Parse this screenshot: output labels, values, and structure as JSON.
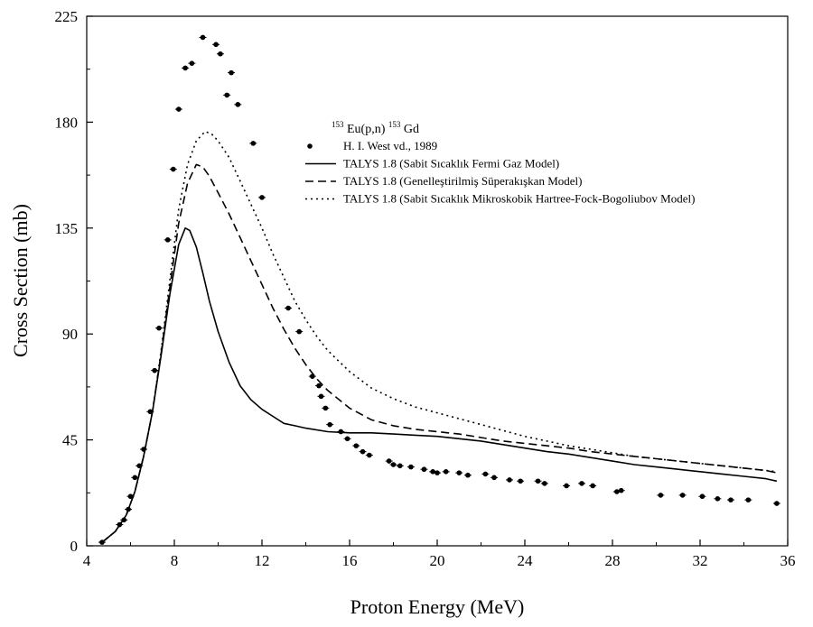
{
  "chart_data": {
    "type": "scatter",
    "xlabel": "Proton Energy (MeV)",
    "ylabel": "Cross Section (mb)",
    "xlim": [
      4,
      36
    ],
    "ylim": [
      0,
      225
    ],
    "xticks": [
      4,
      8,
      12,
      16,
      20,
      24,
      28,
      32,
      36
    ],
    "yticks": [
      0,
      45,
      90,
      135,
      180,
      225
    ],
    "grid": false,
    "legend_position": "top-right",
    "legend_title": {
      "sup_a": "153",
      "main_a": "Eu(p,n)",
      "sup_b": "153",
      "main_b": "Gd"
    },
    "series": [
      {
        "name": "H. I. West vd., 1989",
        "style": "points",
        "x": [
          4.7,
          5.5,
          5.7,
          5.9,
          6.0,
          6.2,
          6.4,
          6.6,
          6.9,
          7.1,
          7.3,
          7.7,
          7.95,
          8.2,
          8.5,
          8.8,
          9.3,
          9.9,
          10.1,
          10.4,
          10.6,
          10.9,
          11.6,
          12.0,
          13.2,
          13.7,
          14.3,
          14.6,
          14.7,
          14.9,
          15.1,
          15.6,
          15.9,
          16.3,
          16.6,
          16.9,
          17.8,
          18.0,
          18.3,
          18.8,
          19.4,
          19.8,
          20.0,
          20.4,
          21.0,
          21.4,
          22.2,
          22.6,
          23.3,
          23.8,
          24.6,
          24.9,
          25.9,
          26.6,
          27.1,
          28.2,
          28.4,
          30.2,
          31.2,
          32.1,
          32.8,
          33.4,
          34.2,
          35.5
        ],
        "y": [
          1.5,
          9,
          11,
          15.5,
          21,
          29,
          34,
          41,
          57,
          74.5,
          92.5,
          130,
          160,
          185.5,
          203,
          205,
          216,
          213,
          209,
          191.5,
          201,
          187.5,
          171,
          148,
          101,
          91,
          72,
          68,
          63.5,
          58.5,
          51.5,
          48.5,
          45.5,
          42.5,
          40,
          38.5,
          36,
          34.5,
          34,
          33.5,
          32.5,
          31.5,
          31,
          31.5,
          31,
          30,
          30.5,
          29,
          28,
          27.5,
          27.5,
          26.5,
          25.5,
          26.5,
          25.5,
          23,
          23.5,
          21.5,
          21.5,
          21,
          20,
          19.5,
          19.5,
          18
        ],
        "color": "#000000"
      },
      {
        "name": "TALYS 1.8 (Sabit Sıcaklık Fermi Gaz Model)",
        "style": "solid",
        "x": [
          4.7,
          5.3,
          5.8,
          6.2,
          6.6,
          7.0,
          7.4,
          7.8,
          8.2,
          8.5,
          8.7,
          9.0,
          9.3,
          9.6,
          10.0,
          10.5,
          11.0,
          11.5,
          12.0,
          12.5,
          13.0,
          13.5,
          14.0,
          15.0,
          16.0,
          17.0,
          18.0,
          19.0,
          20.0,
          21.0,
          22.0,
          23.0,
          24.0,
          25.0,
          26.0,
          27.0,
          28.0,
          29.0,
          30.0,
          31.0,
          32.0,
          33.0,
          34.0,
          35.0,
          35.5
        ],
        "y": [
          1.5,
          6,
          13,
          23,
          38,
          57,
          81,
          107,
          128,
          135,
          134,
          127,
          116,
          104,
          91,
          78,
          68,
          62,
          58,
          55,
          52,
          51,
          50,
          48.5,
          48,
          48,
          47.5,
          47,
          46.5,
          45.5,
          44.5,
          43,
          41.5,
          40,
          39,
          37.5,
          36,
          34.5,
          33.5,
          32.5,
          31.5,
          30.5,
          29.5,
          28.5,
          27.5
        ],
        "color": "#000000"
      },
      {
        "name": "TALYS 1.8 (Genelleştirilmiş Süperakışkan Model)",
        "style": "dashed",
        "x": [
          4.7,
          5.3,
          5.8,
          6.2,
          6.6,
          7.0,
          7.4,
          7.8,
          8.2,
          8.6,
          9.0,
          9.3,
          9.6,
          10.0,
          10.5,
          11.0,
          11.5,
          12.0,
          12.5,
          13.0,
          13.5,
          14.0,
          14.5,
          15.0,
          16.0,
          17.0,
          18.0,
          19.0,
          20.0,
          21.0,
          22.0,
          23.0,
          24.0,
          25.0,
          26.0,
          27.0,
          28.0,
          29.0,
          30.0,
          31.0,
          32.0,
          33.0,
          34.0,
          35.0,
          35.5
        ],
        "y": [
          1.5,
          6,
          13,
          23,
          38,
          57,
          82,
          110,
          137,
          154,
          162,
          161,
          157,
          150,
          141,
          131,
          121,
          111,
          101,
          92,
          84,
          77,
          71,
          66,
          58.5,
          53.5,
          51,
          49.5,
          48.5,
          47.5,
          46,
          44.5,
          43.5,
          42.5,
          41.5,
          40,
          39,
          38,
          37,
          36,
          35,
          34,
          33,
          32,
          31
        ],
        "color": "#000000"
      },
      {
        "name": "TALYS 1.8 (Sabit Sıcaklık Mikroskobik Hartree-Fock-Bogoliubov Model)",
        "style": "dotted",
        "x": [
          4.7,
          5.3,
          5.8,
          6.2,
          6.6,
          7.0,
          7.4,
          7.8,
          8.2,
          8.6,
          9.0,
          9.4,
          9.7,
          10.0,
          10.5,
          11.0,
          11.5,
          12.0,
          12.5,
          13.0,
          13.5,
          14.0,
          14.5,
          15.0,
          16.0,
          17.0,
          18.0,
          19.0,
          20.0,
          21.0,
          22.0,
          23.0,
          24.0,
          25.0,
          26.0,
          27.0,
          28.0,
          29.0,
          30.0,
          31.0,
          32.0,
          33.0,
          34.0,
          35.0,
          35.5
        ],
        "y": [
          1.5,
          6,
          13,
          23,
          38,
          57,
          83,
          113,
          143,
          162,
          172,
          176,
          175,
          172,
          165,
          155,
          145,
          135,
          124,
          114,
          104,
          96,
          89,
          83,
          74,
          67,
          62.5,
          59,
          56.5,
          54,
          51.5,
          49,
          46.5,
          44.5,
          42.5,
          41,
          39.5,
          38,
          37,
          36,
          35,
          34,
          33,
          32,
          31.5
        ],
        "color": "#000000"
      }
    ]
  }
}
